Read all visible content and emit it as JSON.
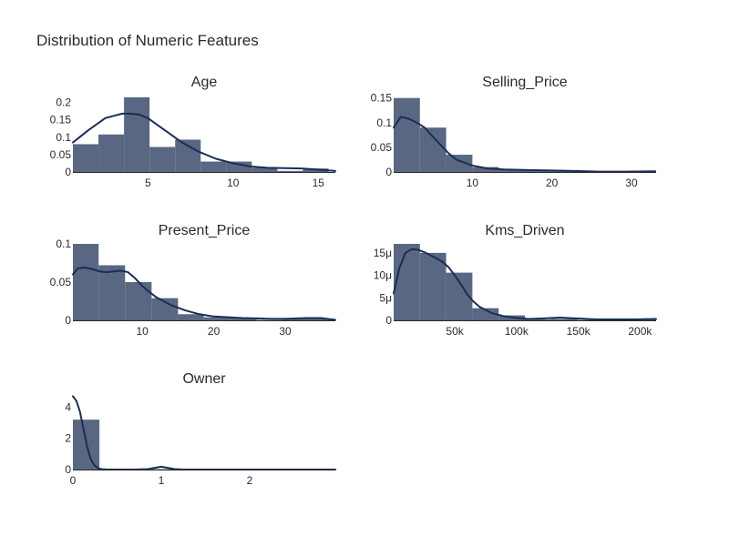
{
  "figure_title": "Distribution of Numeric Features",
  "colors": {
    "bar": "#5a6782",
    "line": "#1b2d55",
    "axis": "#2a2a2a"
  },
  "chart_data": [
    {
      "type": "bar",
      "title": "Age",
      "xlim": [
        0.6,
        16.0
      ],
      "ylim": [
        0,
        0.22
      ],
      "x_ticks": [
        {
          "value": 5,
          "label": "5"
        },
        {
          "value": 10,
          "label": "10"
        },
        {
          "value": 15,
          "label": "15"
        }
      ],
      "y_ticks": [
        {
          "value": 0,
          "label": "0"
        },
        {
          "value": 0.05,
          "label": "0.05"
        },
        {
          "value": 0.1,
          "label": "0.1"
        },
        {
          "value": 0.15,
          "label": "0.15"
        },
        {
          "value": 0.2,
          "label": "0.2"
        }
      ],
      "bins": [
        {
          "x0": 0.6,
          "x1": 2.1,
          "value": 0.08
        },
        {
          "x0": 2.1,
          "x1": 3.6,
          "value": 0.108
        },
        {
          "x0": 3.6,
          "x1": 5.1,
          "value": 0.215
        },
        {
          "x0": 5.1,
          "x1": 6.6,
          "value": 0.072
        },
        {
          "x0": 6.6,
          "x1": 8.1,
          "value": 0.093
        },
        {
          "x0": 8.1,
          "x1": 9.6,
          "value": 0.03
        },
        {
          "x0": 9.6,
          "x1": 11.1,
          "value": 0.03
        },
        {
          "x0": 11.1,
          "x1": 12.6,
          "value": 0.012
        },
        {
          "x0": 12.6,
          "x1": 14.1,
          "value": 0.003
        },
        {
          "x0": 14.1,
          "x1": 15.6,
          "value": 0.01
        }
      ],
      "kde": {
        "x": [
          0.6,
          1.5,
          2.5,
          3.5,
          4.0,
          4.5,
          5.0,
          6.0,
          7.0,
          8.0,
          9.0,
          10.0,
          11.0,
          12.0,
          13.0,
          14.0,
          15.0,
          16.0
        ],
        "y": [
          0.085,
          0.12,
          0.155,
          0.168,
          0.168,
          0.165,
          0.155,
          0.12,
          0.085,
          0.058,
          0.038,
          0.025,
          0.016,
          0.012,
          0.011,
          0.01,
          0.007,
          0.003
        ]
      }
    },
    {
      "type": "bar",
      "title": "Selling_Price",
      "xlim": [
        0.1,
        33.1
      ],
      "ylim": [
        0,
        0.155
      ],
      "x_ticks": [
        {
          "value": 10,
          "label": "10"
        },
        {
          "value": 20,
          "label": "20"
        },
        {
          "value": 30,
          "label": "30"
        }
      ],
      "y_ticks": [
        {
          "value": 0,
          "label": "0"
        },
        {
          "value": 0.05,
          "label": "0.05"
        },
        {
          "value": 0.1,
          "label": "0.1"
        },
        {
          "value": 0.15,
          "label": "0.15"
        }
      ],
      "bins": [
        {
          "x0": 0.1,
          "x1": 3.4,
          "value": 0.15
        },
        {
          "x0": 3.4,
          "x1": 6.7,
          "value": 0.09
        },
        {
          "x0": 6.7,
          "x1": 10.0,
          "value": 0.035
        },
        {
          "x0": 10.0,
          "x1": 13.3,
          "value": 0.01
        },
        {
          "x0": 13.3,
          "x1": 16.6,
          "value": 0.005
        },
        {
          "x0": 16.6,
          "x1": 19.9,
          "value": 0.004
        },
        {
          "x0": 19.9,
          "x1": 23.2,
          "value": 0.003
        },
        {
          "x0": 23.2,
          "x1": 26.5,
          "value": 0.001
        },
        {
          "x0": 26.5,
          "x1": 29.8,
          "value": 0.0005
        },
        {
          "x0": 29.8,
          "x1": 33.1,
          "value": 0.0005
        }
      ],
      "kde": {
        "x": [
          0.1,
          1.0,
          2.0,
          3.0,
          4.0,
          5.0,
          6.0,
          7.0,
          8.0,
          10.0,
          12.0,
          14.0,
          17.0,
          20.0,
          23.0,
          26.0,
          29.0,
          33.0
        ],
        "y": [
          0.09,
          0.112,
          0.108,
          0.1,
          0.09,
          0.072,
          0.055,
          0.038,
          0.025,
          0.013,
          0.007,
          0.005,
          0.004,
          0.003,
          0.002,
          0.0008,
          0.0008,
          0.0015
        ]
      }
    },
    {
      "type": "bar",
      "title": "Present_Price",
      "xlim": [
        0.3,
        37.0
      ],
      "ylim": [
        0,
        0.1
      ],
      "x_ticks": [
        {
          "value": 10,
          "label": "10"
        },
        {
          "value": 20,
          "label": "20"
        },
        {
          "value": 30,
          "label": "30"
        }
      ],
      "y_ticks": [
        {
          "value": 0,
          "label": "0"
        },
        {
          "value": 0.05,
          "label": "0.05"
        },
        {
          "value": 0.1,
          "label": "0.1"
        }
      ],
      "bins": [
        {
          "x0": 0.3,
          "x1": 3.9,
          "value": 0.1
        },
        {
          "x0": 3.9,
          "x1": 7.6,
          "value": 0.072
        },
        {
          "x0": 7.6,
          "x1": 11.3,
          "value": 0.05
        },
        {
          "x0": 11.3,
          "x1": 15.0,
          "value": 0.029
        },
        {
          "x0": 15.0,
          "x1": 18.6,
          "value": 0.008
        },
        {
          "x0": 18.6,
          "x1": 22.3,
          "value": 0.004
        },
        {
          "x0": 22.3,
          "x1": 26.0,
          "value": 0.003
        },
        {
          "x0": 26.0,
          "x1": 29.6,
          "value": 0.0005
        },
        {
          "x0": 29.6,
          "x1": 33.3,
          "value": 0.002
        },
        {
          "x0": 33.3,
          "x1": 37.0,
          "value": 0.002
        }
      ],
      "kde": {
        "x": [
          0.3,
          1.0,
          2.0,
          3.0,
          4.0,
          5.0,
          6.0,
          7.0,
          8.0,
          9.0,
          10.0,
          11.0,
          12.0,
          14.0,
          16.0,
          18.0,
          20.0,
          22.0,
          24.0,
          26.0,
          28.0,
          30.0,
          33.0,
          35.0,
          37.0
        ],
        "y": [
          0.06,
          0.068,
          0.069,
          0.067,
          0.064,
          0.063,
          0.064,
          0.065,
          0.063,
          0.055,
          0.045,
          0.037,
          0.03,
          0.02,
          0.013,
          0.008,
          0.005,
          0.004,
          0.003,
          0.0025,
          0.002,
          0.002,
          0.003,
          0.003,
          0.0005
        ]
      }
    },
    {
      "type": "bar",
      "title": "Kms_Driven",
      "xlim": [
        500,
        213000
      ],
      "ylim": [
        0,
        1.7e-05
      ],
      "x_ticks": [
        {
          "value": 50000,
          "label": "50k"
        },
        {
          "value": 100000,
          "label": "100k"
        },
        {
          "value": 150000,
          "label": "150k"
        },
        {
          "value": 200000,
          "label": "200k"
        }
      ],
      "y_ticks": [
        {
          "value": 0,
          "label": "0"
        },
        {
          "value": 5e-06,
          "label": "5μ"
        },
        {
          "value": 1e-05,
          "label": "10μ"
        },
        {
          "value": 1.5e-05,
          "label": "15μ"
        }
      ],
      "bins": [
        {
          "x0": 500,
          "x1": 21750,
          "value": 1.7e-05
        },
        {
          "x0": 21750,
          "x1": 43000,
          "value": 1.5e-05
        },
        {
          "x0": 43000,
          "x1": 64250,
          "value": 1.06e-05
        },
        {
          "x0": 64250,
          "x1": 85500,
          "value": 2.7e-06
        },
        {
          "x0": 85500,
          "x1": 106750,
          "value": 1.1e-06
        },
        {
          "x0": 106750,
          "x1": 128000,
          "value": 2e-07
        },
        {
          "x0": 128000,
          "x1": 149250,
          "value": 3e-07
        },
        {
          "x0": 149250,
          "x1": 170500,
          "value": 1e-07
        },
        {
          "x0": 170500,
          "x1": 191750,
          "value": 1e-07
        },
        {
          "x0": 191750,
          "x1": 213000,
          "value": 2e-07
        }
      ],
      "kde": {
        "x": [
          500,
          5000,
          10000,
          15000,
          20000,
          25000,
          30000,
          35000,
          40000,
          45000,
          50000,
          55000,
          60000,
          65000,
          70000,
          80000,
          90000,
          100000,
          110000,
          120000,
          135000,
          150000,
          165000,
          180000,
          195000,
          213000
        ],
        "y": [
          6e-06,
          1.15e-05,
          1.5e-05,
          1.58e-05,
          1.57e-05,
          1.52e-05,
          1.45e-05,
          1.38e-05,
          1.3e-05,
          1.18e-05,
          1e-05,
          8e-06,
          5.8e-06,
          4.2e-06,
          3e-06,
          1.6e-06,
          9e-07,
          5e-07,
          3e-07,
          4e-07,
          6e-07,
          4e-07,
          2e-07,
          2e-07,
          2e-07,
          3e-07
        ]
      }
    },
    {
      "type": "bar",
      "title": "Owner",
      "xlim": [
        0,
        2.97
      ],
      "ylim": [
        0,
        4.9
      ],
      "x_ticks": [
        {
          "value": 0,
          "label": "0"
        },
        {
          "value": 1,
          "label": "1"
        },
        {
          "value": 2,
          "label": "2"
        }
      ],
      "y_ticks": [
        {
          "value": 0,
          "label": "0"
        },
        {
          "value": 2,
          "label": "2"
        },
        {
          "value": 4,
          "label": "4"
        }
      ],
      "bins": [
        {
          "x0": 0,
          "x1": 0.3,
          "value": 3.2
        },
        {
          "x0": 0.3,
          "x1": 0.6,
          "value": 0
        },
        {
          "x0": 0.6,
          "x1": 0.9,
          "value": 0
        },
        {
          "x0": 0.9,
          "x1": 1.2,
          "value": 0.03
        },
        {
          "x0": 1.2,
          "x1": 1.5,
          "value": 0
        },
        {
          "x0": 1.5,
          "x1": 1.8,
          "value": 0
        },
        {
          "x0": 1.8,
          "x1": 2.1,
          "value": 0
        },
        {
          "x0": 2.1,
          "x1": 2.4,
          "value": 0
        },
        {
          "x0": 2.4,
          "x1": 2.7,
          "value": 0
        },
        {
          "x0": 2.7,
          "x1": 3.0,
          "value": 0.01
        }
      ],
      "kde": {
        "x": [
          0,
          0.04,
          0.08,
          0.12,
          0.16,
          0.2,
          0.24,
          0.28,
          0.32,
          0.4,
          0.5,
          0.7,
          0.85,
          0.92,
          1.0,
          1.08,
          1.15,
          1.25,
          1.5,
          2.0,
          2.5,
          2.97
        ],
        "y": [
          4.7,
          4.4,
          3.7,
          2.6,
          1.5,
          0.7,
          0.3,
          0.1,
          0.03,
          0.0,
          0.0,
          0.0,
          0.03,
          0.1,
          0.18,
          0.1,
          0.03,
          0.0,
          0.0,
          0.0,
          0.0,
          0.0
        ]
      }
    }
  ]
}
